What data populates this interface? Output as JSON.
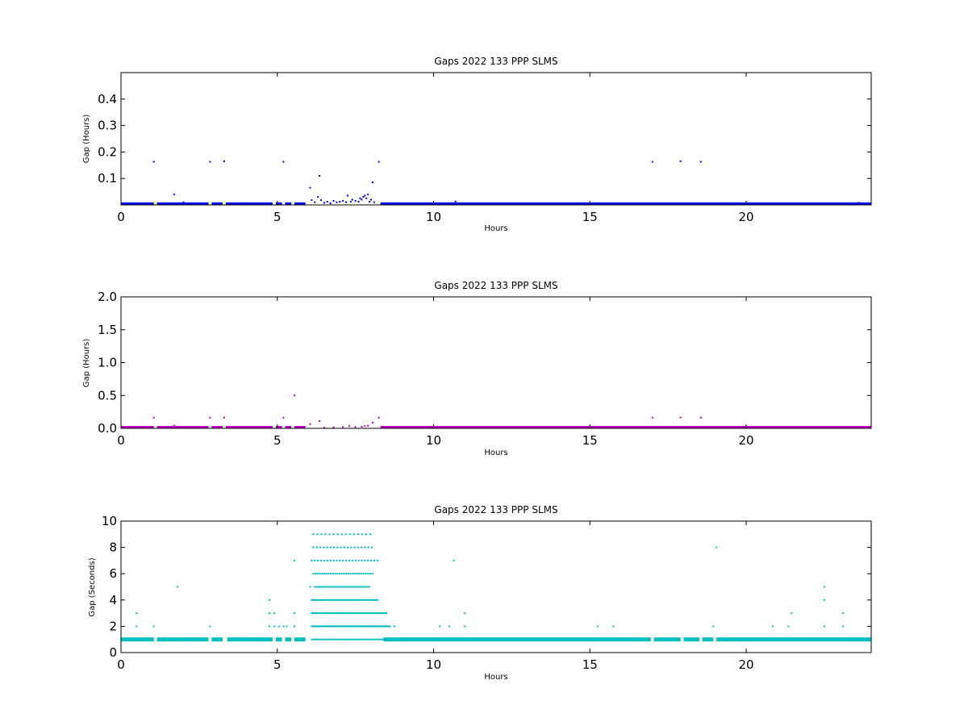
{
  "chart_data": [
    {
      "type": "scatter",
      "title": "Gaps 2022 133 PPP  SLMS",
      "xlabel": "Hours",
      "ylabel": "Gap (Hours)",
      "xlim": [
        0,
        24
      ],
      "ylim": [
        0,
        0.5
      ],
      "xticks": [
        0,
        5,
        10,
        15,
        20
      ],
      "yticks": [
        0.1,
        0.2,
        0.3,
        0.4
      ],
      "grid": false,
      "color": "#0000ff",
      "baseline": {
        "y": 0.0003,
        "segments": [
          [
            0,
            1.05
          ],
          [
            1.15,
            2.8
          ],
          [
            2.9,
            3.25
          ],
          [
            3.35,
            4.85
          ],
          [
            4.95,
            5.15
          ],
          [
            5.25,
            5.45
          ],
          [
            5.55,
            5.9
          ],
          [
            8.3,
            24
          ]
        ]
      },
      "points": [
        [
          1.05,
          0.163
        ],
        [
          1.7,
          0.04
        ],
        [
          2.0,
          0.01
        ],
        [
          2.2,
          0.006
        ],
        [
          2.85,
          0.163
        ],
        [
          3.3,
          0.165
        ],
        [
          5.2,
          0.163
        ],
        [
          6.05,
          0.065
        ],
        [
          6.1,
          0.018
        ],
        [
          6.2,
          0.01
        ],
        [
          6.3,
          0.03
        ],
        [
          6.35,
          0.11
        ],
        [
          6.4,
          0.018
        ],
        [
          6.5,
          0.008
        ],
        [
          6.6,
          0.012
        ],
        [
          6.7,
          0.006
        ],
        [
          6.8,
          0.015
        ],
        [
          6.9,
          0.01
        ],
        [
          7.0,
          0.012
        ],
        [
          7.1,
          0.015
        ],
        [
          7.2,
          0.01
        ],
        [
          7.25,
          0.035
        ],
        [
          7.35,
          0.012
        ],
        [
          7.4,
          0.02
        ],
        [
          7.5,
          0.015
        ],
        [
          7.6,
          0.012
        ],
        [
          7.65,
          0.025
        ],
        [
          7.7,
          0.02
        ],
        [
          7.75,
          0.03
        ],
        [
          7.8,
          0.035
        ],
        [
          7.85,
          0.025
        ],
        [
          7.9,
          0.04
        ],
        [
          7.95,
          0.012
        ],
        [
          8.0,
          0.02
        ],
        [
          8.05,
          0.085
        ],
        [
          8.1,
          0.01
        ],
        [
          8.25,
          0.163
        ],
        [
          10.7,
          0.013
        ],
        [
          17.0,
          0.163
        ],
        [
          17.9,
          0.165
        ],
        [
          18.55,
          0.163
        ],
        [
          23.6,
          0.008
        ]
      ]
    },
    {
      "type": "scatter",
      "title": "Gaps 2022 133 PPP  SLMS",
      "xlabel": "Hours",
      "ylabel": "Gap (Hours)",
      "xlim": [
        0,
        24
      ],
      "ylim": [
        0,
        2.0
      ],
      "xticks": [
        0,
        5,
        10,
        15,
        20
      ],
      "yticks": [
        0.0,
        0.5,
        1.0,
        1.5,
        2.0
      ],
      "grid": false,
      "color": "#bf00bf",
      "baseline": {
        "y": 0.0003,
        "segments": [
          [
            0,
            1.05
          ],
          [
            1.15,
            2.8
          ],
          [
            2.9,
            3.25
          ],
          [
            3.35,
            4.85
          ],
          [
            4.95,
            5.15
          ],
          [
            5.25,
            5.45
          ],
          [
            5.55,
            5.9
          ],
          [
            8.3,
            24
          ]
        ]
      },
      "points": [
        [
          1.05,
          0.163
        ],
        [
          1.7,
          0.04
        ],
        [
          2.85,
          0.163
        ],
        [
          3.3,
          0.165
        ],
        [
          5.2,
          0.163
        ],
        [
          5.55,
          0.5
        ],
        [
          6.05,
          0.065
        ],
        [
          6.35,
          0.11
        ],
        [
          6.5,
          0.01
        ],
        [
          6.8,
          0.015
        ],
        [
          7.1,
          0.02
        ],
        [
          7.3,
          0.035
        ],
        [
          7.5,
          0.02
        ],
        [
          7.7,
          0.025
        ],
        [
          7.8,
          0.035
        ],
        [
          7.9,
          0.04
        ],
        [
          8.05,
          0.085
        ],
        [
          8.25,
          0.163
        ],
        [
          17.0,
          0.163
        ],
        [
          17.9,
          0.165
        ],
        [
          18.55,
          0.163
        ]
      ]
    },
    {
      "type": "scatter",
      "title": "Gaps 2022 133 PPP  SLMS",
      "xlabel": "Hours",
      "ylabel": "Gap (Seconds)",
      "xlim": [
        0,
        24
      ],
      "ylim": [
        0,
        10
      ],
      "xticks": [
        0,
        5,
        10,
        15,
        20
      ],
      "yticks": [
        0,
        2,
        4,
        6,
        8,
        10
      ],
      "grid": false,
      "color": "#00bfbf",
      "baseline": {
        "y": 1,
        "segments": [
          [
            0,
            1.05
          ],
          [
            1.15,
            2.8
          ],
          [
            2.9,
            3.25
          ],
          [
            3.4,
            4.85
          ],
          [
            4.95,
            5.15
          ],
          [
            5.25,
            5.45
          ],
          [
            5.55,
            5.9
          ],
          [
            8.4,
            16.95
          ],
          [
            17.05,
            17.9
          ],
          [
            18.0,
            18.5
          ],
          [
            18.6,
            18.95
          ],
          [
            19.05,
            24
          ]
        ]
      },
      "points": [
        [
          0.5,
          3
        ],
        [
          0.5,
          2
        ],
        [
          1.05,
          2
        ],
        [
          1.8,
          5
        ],
        [
          2.85,
          2
        ],
        [
          4.75,
          4
        ],
        [
          4.75,
          3
        ],
        [
          4.75,
          2
        ],
        [
          4.9,
          3
        ],
        [
          4.9,
          2
        ],
        [
          5.05,
          2
        ],
        [
          5.2,
          2
        ],
        [
          5.3,
          2
        ],
        [
          5.55,
          7
        ],
        [
          5.55,
          3
        ],
        [
          5.55,
          2
        ],
        [
          6.05,
          5
        ],
        [
          8.6,
          2
        ],
        [
          8.75,
          2
        ],
        [
          10.2,
          2
        ],
        [
          10.5,
          2
        ],
        [
          10.65,
          7
        ],
        [
          11.0,
          3
        ],
        [
          11.0,
          2
        ],
        [
          15.25,
          2
        ],
        [
          15.75,
          2
        ],
        [
          18.95,
          2
        ],
        [
          19.05,
          8
        ],
        [
          20.85,
          2
        ],
        [
          21.35,
          2
        ],
        [
          21.45,
          3
        ],
        [
          22.5,
          5
        ],
        [
          22.5,
          4
        ],
        [
          22.5,
          2
        ],
        [
          23.1,
          3
        ],
        [
          23.1,
          2
        ]
      ],
      "dense_rows": [
        {
          "y": 9,
          "x_start": 6.15,
          "x_end": 8.05,
          "step": 0.13
        },
        {
          "y": 8,
          "x_start": 6.15,
          "x_end": 8.1,
          "step": 0.11
        },
        {
          "y": 7,
          "x_start": 6.1,
          "x_end": 8.25,
          "step": 0.1
        },
        {
          "y": 6,
          "x_start": 6.15,
          "x_end": 8.05,
          "step": 0.07
        },
        {
          "y": 5,
          "x_start": 6.2,
          "x_end": 7.95,
          "step": 0.06
        },
        {
          "y": 4,
          "x_start": 6.1,
          "x_end": 8.2,
          "step": 0.05
        },
        {
          "y": 3,
          "x_start": 6.1,
          "x_end": 8.5,
          "step": 0.045
        },
        {
          "y": 2,
          "x_start": 6.1,
          "x_end": 8.6,
          "step": 0.035
        },
        {
          "y": 1,
          "x_start": 6.1,
          "x_end": 8.4,
          "step": 0.06
        }
      ]
    }
  ]
}
